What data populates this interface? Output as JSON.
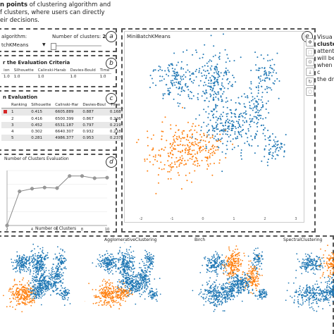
{
  "header": {
    "line1_bold": "n points",
    "line1_rest": " of clustering algorithm and",
    "line2": "f clusters, where users can directly",
    "line3": "eir decisions."
  },
  "right_text": {
    "line1": "Visua",
    "line2": "cluste",
    "line3": "attent",
    "line4": "will be",
    "line5": "when c",
    "line6": "the dr"
  },
  "panel_a": {
    "badge": "a",
    "algorithm_label": "algorithm:",
    "algorithm_value": "tchKMeans",
    "num_clusters_label": "Number of clusters:",
    "num_clusters_value": "2"
  },
  "panel_b": {
    "badge": "b",
    "title": "r the Evaluation Criteria",
    "headers": [
      "ion",
      "Silhouette",
      "Calinski-Harab",
      "Davies-Bould",
      "Time"
    ],
    "row": [
      "1.0",
      "1.0",
      "1.0",
      "1.0",
      "1.0"
    ]
  },
  "panel_c": {
    "badge": "c",
    "title": "n Evaluation",
    "headers": [
      "",
      "Ranking",
      "Silhouette",
      "Calinski-Har",
      "Davies-Boul",
      "Time"
    ],
    "rows": [
      [
        "",
        "1",
        "0.415",
        "6605.889",
        "0.887",
        "0.168"
      ],
      [
        "",
        "2",
        "0.416",
        "6500.399",
        "0.867",
        "0.226"
      ],
      [
        "",
        "3",
        "0.452",
        "6531.187",
        "0.797",
        "0.219"
      ],
      [
        "",
        "4",
        "0.302",
        "6640.307",
        "0.932",
        "0.218"
      ],
      [
        "",
        "5",
        "0.281",
        "4986.377",
        "0.953",
        "0.237"
      ]
    ]
  },
  "panel_d": {
    "badge": "d",
    "title": "Number of Clusters Evaluation",
    "xlabel": "Number of Clusters",
    "chart_data": {
      "type": "line",
      "title": "Number of Clusters Evaluation",
      "xlabel": "Number of Clusters",
      "ylabel": "",
      "x": [
        2,
        3,
        4,
        5,
        6,
        7,
        8,
        9,
        10
      ],
      "values": [
        0.0,
        0.62,
        0.67,
        0.69,
        0.68,
        0.9,
        0.9,
        0.86,
        0.87
      ],
      "xticks": [
        "2",
        "4",
        "6",
        "8",
        "10"
      ],
      "ylim": [
        0,
        1
      ]
    }
  },
  "main_plot": {
    "badge": "e",
    "title": "MiniBatchKMeans",
    "xticks": [
      "-2",
      "-1",
      "0",
      "1",
      "2",
      "3"
    ],
    "colors": {
      "cluster_0": "#1f77b4",
      "cluster_1": "#ff7f0e"
    }
  },
  "toolbar": {
    "icons": [
      "pan-icon",
      "box-zoom-icon",
      "wheel-zoom-icon",
      "save-icon",
      "reset-icon",
      "hover-icon"
    ]
  },
  "thumbnails": [
    {
      "title": ""
    },
    {
      "title": "AgglomerativeClustering"
    },
    {
      "title": "Birch"
    },
    {
      "title": "SpectralClustering"
    }
  ]
}
